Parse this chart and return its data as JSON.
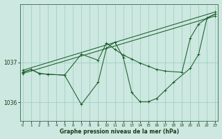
{
  "xlabel": "Graphe pression niveau de la mer (hPa)",
  "background_color": "#cce8e0",
  "plot_bg_color": "#cce8e0",
  "grid_color": "#99ccbb",
  "line_color": "#1a5c2a",
  "ylim": [
    1035.55,
    1038.45
  ],
  "xlim": [
    -0.3,
    23.3
  ],
  "yticks": [
    1036,
    1037
  ],
  "xticks": [
    0,
    1,
    2,
    3,
    4,
    5,
    6,
    7,
    8,
    9,
    10,
    11,
    12,
    13,
    14,
    15,
    16,
    17,
    18,
    19,
    20,
    21,
    22,
    23
  ],
  "series": [
    {
      "x": [
        0,
        23
      ],
      "y": [
        1036.8,
        1038.25
      ]
    },
    {
      "x": [
        0,
        23
      ],
      "y": [
        1036.72,
        1038.15
      ]
    },
    {
      "x": [
        0,
        1,
        2,
        3,
        5,
        7,
        9,
        10,
        11,
        12,
        13,
        14,
        15,
        16,
        17,
        18,
        20,
        21,
        22,
        23
      ],
      "y": [
        1036.75,
        1036.82,
        1036.72,
        1036.7,
        1036.68,
        1035.95,
        1036.5,
        1037.35,
        1037.5,
        1037.12,
        1036.25,
        1036.02,
        1036.02,
        1036.1,
        1036.3,
        1036.5,
        1036.85,
        1037.2,
        1038.1,
        1038.2
      ]
    },
    {
      "x": [
        0,
        1,
        2,
        3,
        5,
        7,
        9,
        10,
        11,
        12,
        13,
        14,
        15,
        16,
        17,
        19,
        20,
        21,
        22,
        23
      ],
      "y": [
        1036.75,
        1036.82,
        1036.72,
        1036.7,
        1036.68,
        1037.2,
        1037.05,
        1037.48,
        1037.32,
        1037.18,
        1037.08,
        1036.98,
        1036.9,
        1036.82,
        1036.78,
        1036.75,
        1037.6,
        1037.95,
        1038.1,
        1038.2
      ]
    }
  ]
}
